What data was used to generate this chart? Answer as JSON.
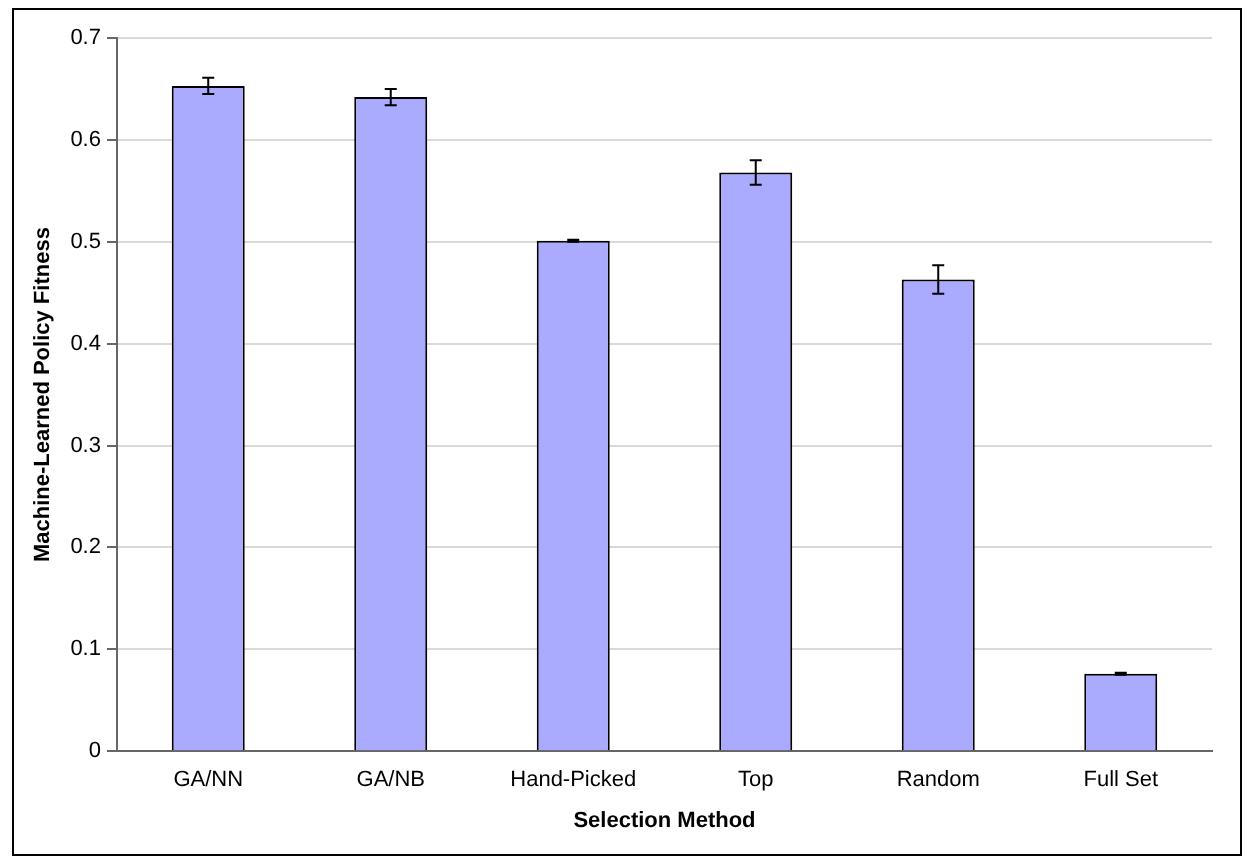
{
  "chart_data": {
    "type": "bar",
    "xlabel": "Selection Method",
    "ylabel": "Machine-Learned Policy Fitness",
    "categories": [
      "GA/NN",
      "GA/NB",
      "Hand-Picked",
      "Top",
      "Random",
      "Full Set"
    ],
    "values": [
      0.653,
      0.642,
      0.501,
      0.568,
      0.463,
      0.076
    ],
    "errors": [
      0.008,
      0.008,
      0.001,
      0.012,
      0.014,
      0.001
    ],
    "color": "#aaaaff",
    "ylim": [
      0,
      0.7
    ],
    "yticks": [
      0,
      0.1,
      0.2,
      0.3,
      0.4,
      0.5,
      0.6,
      0.7
    ],
    "grid": "y"
  }
}
